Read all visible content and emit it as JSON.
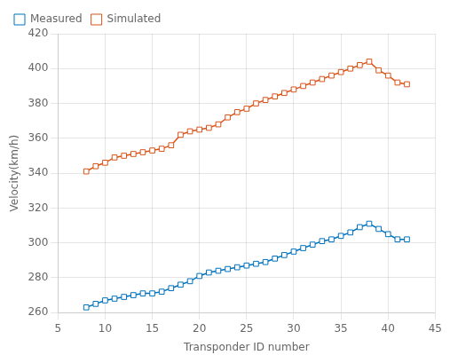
{
  "chart_data": {
    "type": "line",
    "xlabel": "Transponder ID number",
    "ylabel": "Velocity(km/h)",
    "x": [
      8,
      9,
      10,
      11,
      12,
      13,
      14,
      15,
      16,
      17,
      18,
      19,
      20,
      21,
      22,
      23,
      24,
      25,
      26,
      27,
      28,
      29,
      30,
      31,
      32,
      33,
      34,
      35,
      36,
      37,
      38,
      39,
      40,
      41,
      42
    ],
    "series": [
      {
        "name": "Measured",
        "color": "#0072BD",
        "values": [
          263,
          265,
          267,
          268,
          269,
          270,
          271,
          271,
          272,
          274,
          276,
          278,
          281,
          283,
          284,
          285,
          286,
          287,
          288,
          289,
          291,
          293,
          295,
          297,
          299,
          301,
          302,
          304,
          306,
          309,
          311,
          308,
          305,
          302,
          302
        ]
      },
      {
        "name": "Simulated",
        "color": "#D95319",
        "values": [
          341,
          344,
          346,
          349,
          350,
          351,
          352,
          353,
          354,
          356,
          362,
          364,
          365,
          366,
          368,
          372,
          375,
          377,
          380,
          382,
          384,
          386,
          388,
          390,
          392,
          394,
          396,
          398,
          400,
          402,
          404,
          399,
          396,
          392,
          391
        ]
      }
    ],
    "marker": "square",
    "xlim": [
      5,
      45
    ],
    "xticks": [
      5,
      10,
      15,
      20,
      25,
      30,
      35,
      40,
      45
    ],
    "ylim": [
      260,
      420
    ],
    "yticks": [
      260,
      280,
      300,
      320,
      340,
      360,
      380,
      400,
      420
    ],
    "grid": true,
    "legend": "upper left"
  }
}
